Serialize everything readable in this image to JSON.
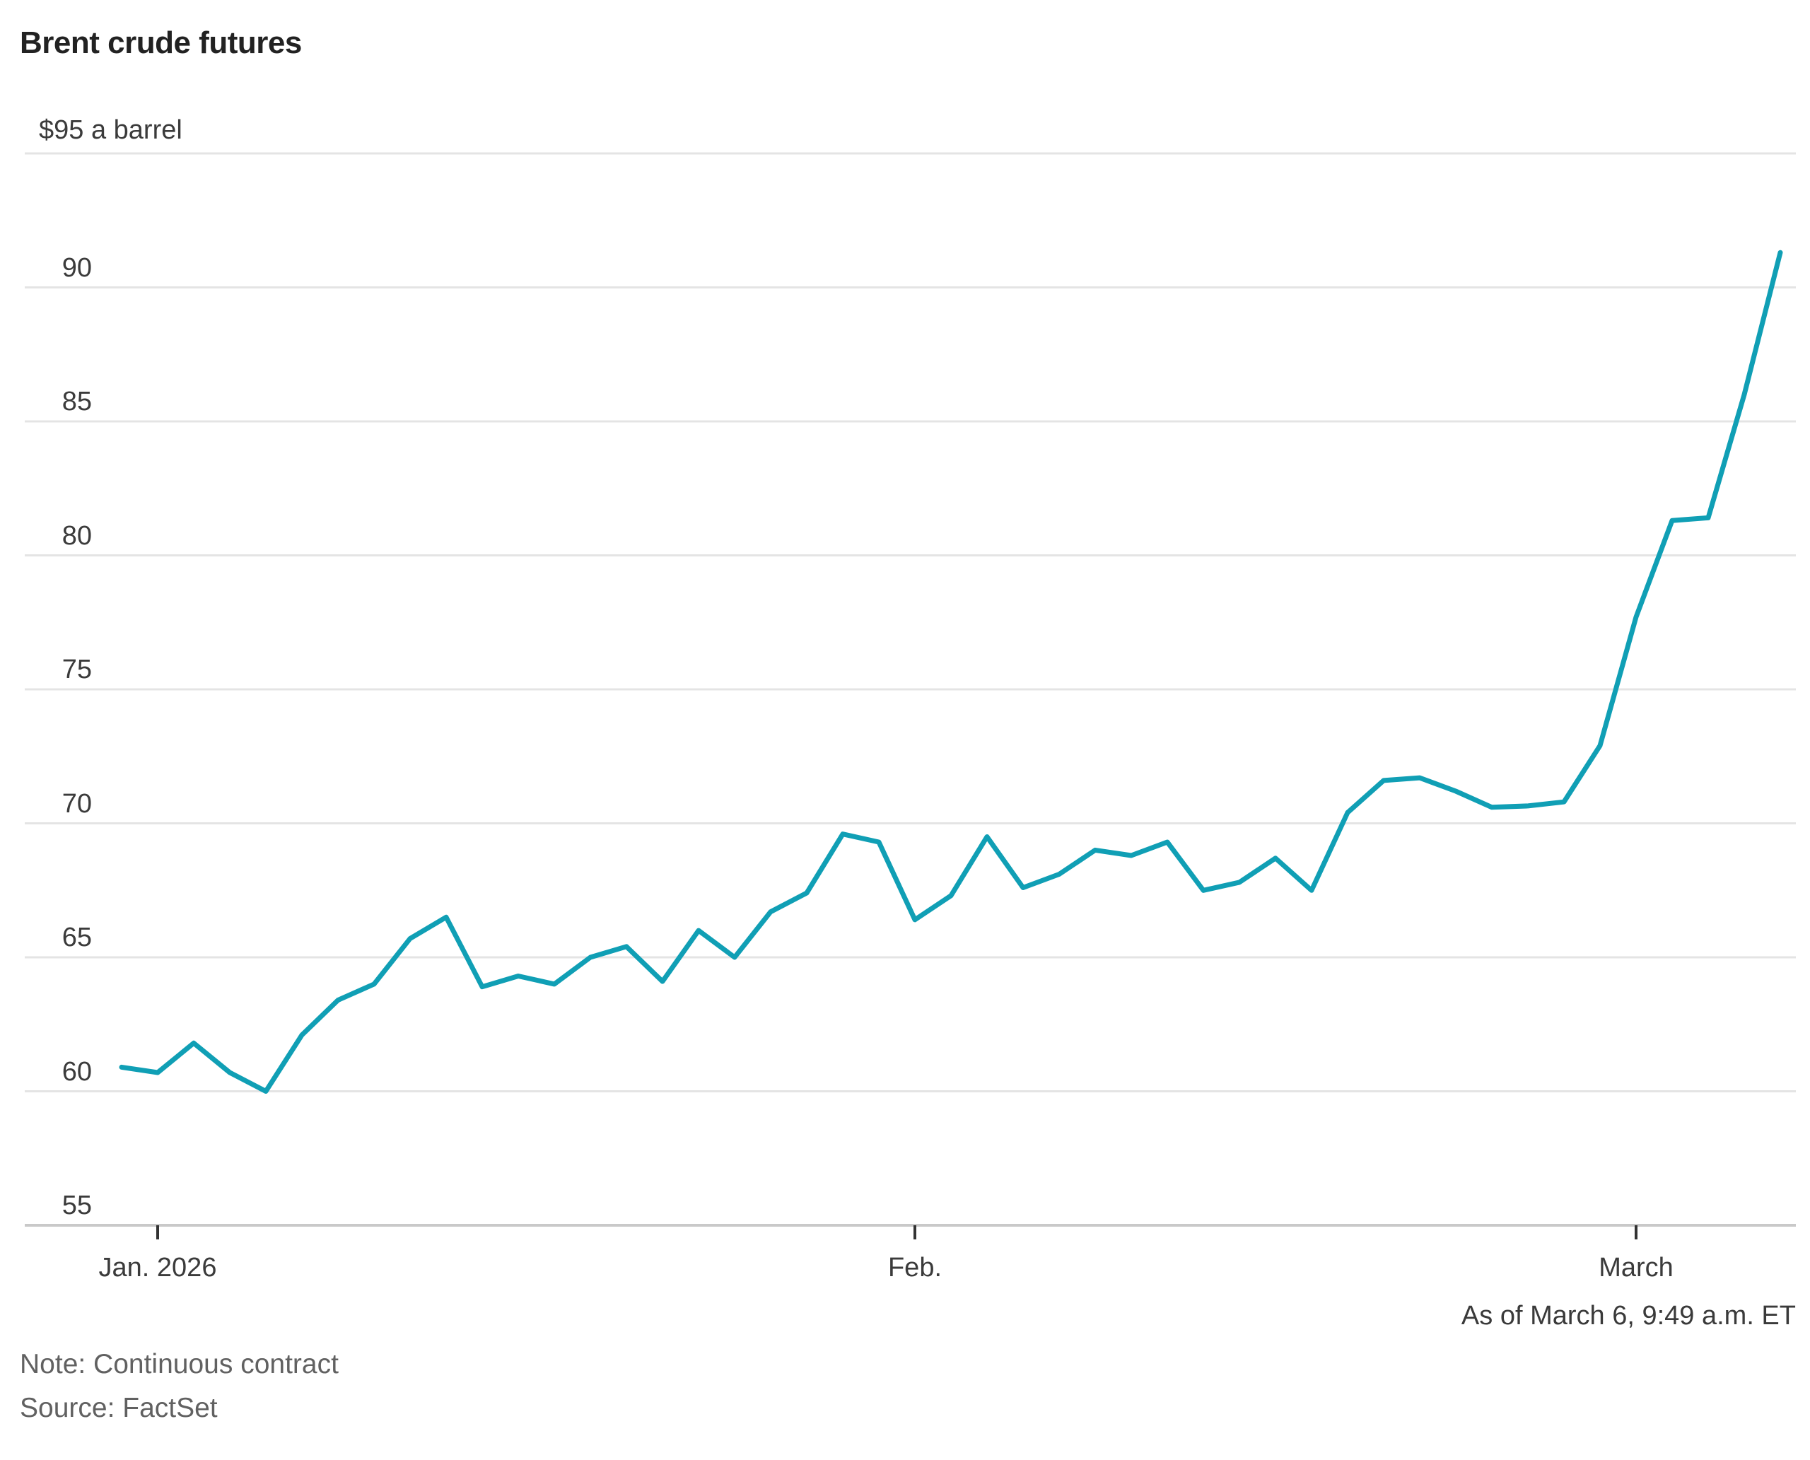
{
  "title": "Brent crude futures",
  "y_axis": {
    "top_label": "$95 a barrel",
    "tick_labels": [
      "90",
      "85",
      "80",
      "75",
      "70",
      "65",
      "60",
      "55"
    ]
  },
  "x_axis": {
    "tick_labels": [
      "Jan. 2026",
      "Feb.",
      "March"
    ]
  },
  "footer": {
    "as_of": "As of March 6, 9:49 a.m. ET",
    "note": "Note: Continuous contract",
    "source": "Source: FactSet"
  },
  "colors": {
    "line": "#109fb5",
    "grid": "#e4e4e4",
    "axis_baseline": "#c9c9c9",
    "tick_mark": "#333333",
    "title_text": "#222222",
    "axis_text": "#3b3b3b",
    "muted_text": "#616161"
  },
  "chart_data": {
    "type": "line",
    "title": "Brent crude futures",
    "ylabel": "$ a barrel",
    "ylim": [
      55,
      95
    ],
    "y_gridlines": [
      95,
      90,
      85,
      80,
      75,
      70,
      65,
      60,
      55
    ],
    "grid": true,
    "legend_position": "none",
    "x_ticks": [
      {
        "label": "Jan. 2026",
        "index": 1
      },
      {
        "label": "Feb.",
        "index": 22
      },
      {
        "label": "March",
        "index": 42
      }
    ],
    "as_of_label": "As of March 6, 9:49 a.m. ET",
    "series": [
      {
        "name": "Brent crude continuous contract ($ a barrel)",
        "values": [
          60.9,
          60.7,
          61.8,
          60.7,
          60.0,
          62.1,
          63.4,
          64.0,
          65.7,
          66.5,
          63.9,
          64.3,
          64.0,
          65.0,
          65.4,
          64.1,
          66.0,
          65.0,
          66.7,
          67.4,
          69.6,
          69.3,
          66.4,
          67.3,
          69.5,
          67.6,
          68.1,
          69.0,
          68.8,
          69.3,
          67.5,
          67.8,
          68.7,
          67.5,
          70.4,
          71.6,
          71.7,
          71.2,
          70.6,
          70.65,
          70.8,
          72.9,
          77.7,
          81.3,
          81.4,
          86.0,
          91.3
        ]
      }
    ]
  }
}
